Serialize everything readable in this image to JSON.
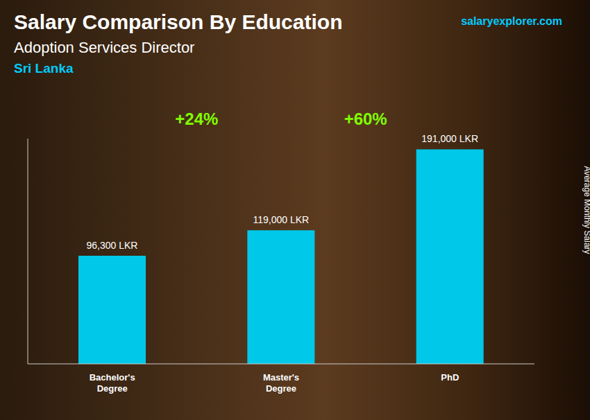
{
  "chart_data": {
    "type": "bar",
    "title": "Salary Comparison By Education",
    "subtitle": "Adoption Services Director",
    "ylabel": "Average Monthly Salary",
    "categories": [
      "Bachelor's\nDegree",
      "Master's\nDegree",
      "PhD"
    ],
    "values": [
      96300,
      119000,
      191000
    ],
    "value_labels": [
      "96,300 LKR",
      "119,000 LKR",
      "191,000 LKR"
    ],
    "data_labels": true,
    "color": "#00c8e8",
    "ylim": [
      0,
      200550
    ],
    "tick_labels": "x",
    "grid": false,
    "annotations": [
      {
        "text": "Sri Lanka",
        "color": "#00ccff"
      },
      {
        "text": "salaryexplorer.com",
        "color": "#00ccff"
      },
      {
        "text": "+24%",
        "color": "#7fff00"
      },
      {
        "text": "+60%",
        "color": "#7fff00"
      }
    ]
  }
}
